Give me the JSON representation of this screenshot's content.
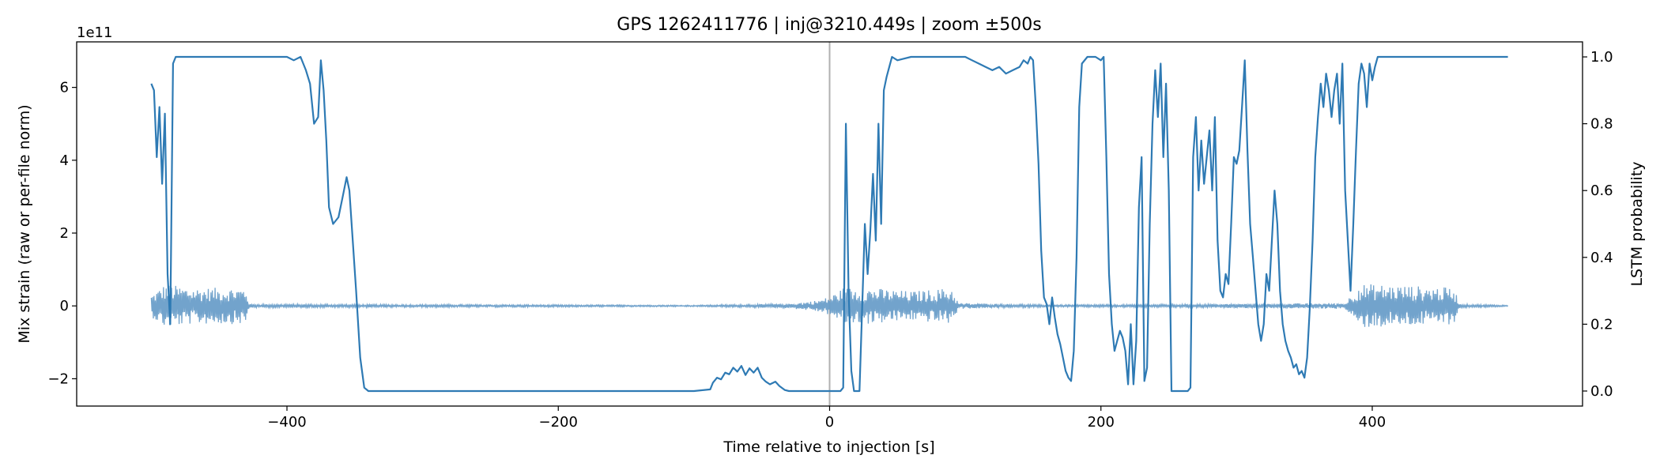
{
  "chart_data": {
    "type": "line",
    "title": "GPS 1262411776 | inj@3210.449s | zoom ±500s",
    "xlabel": "Time relative to injection [s]",
    "ylabel": "Mix strain (raw or per-file norm)",
    "y2label": "LSTM probability",
    "y_offset_label": "1e11",
    "xlim": [
      -555,
      555
    ],
    "ylim": [
      -2.75,
      7.25
    ],
    "y_scale": 100000000000.0,
    "y2lim": [
      -0.045,
      1.045
    ],
    "grid": false,
    "legend": "none",
    "colors": {
      "strain": "#6a9ec9",
      "probability": "#2e7ab4",
      "injection_line": "#b0b0b0"
    },
    "injection_marker_x": 0,
    "xticks": [
      -400,
      -200,
      0,
      200,
      400
    ],
    "xtick_labels": [
      "−400",
      "−200",
      "0",
      "200",
      "400"
    ],
    "yticks": [
      -2,
      0,
      2,
      4,
      6
    ],
    "ytick_labels": [
      "−2",
      "0",
      "2",
      "4",
      "6"
    ],
    "y2ticks": [
      0.0,
      0.2,
      0.4,
      0.6,
      0.8,
      1.0
    ],
    "y2tick_labels": [
      "0.0",
      "0.2",
      "0.4",
      "0.6",
      "0.8",
      "1.0"
    ],
    "series": [
      {
        "axis": "left",
        "noise_envelope": [
          [
            -500,
            0.3
          ],
          [
            -490,
            0.6
          ],
          [
            -470,
            0.5
          ],
          [
            -450,
            0.5
          ],
          [
            -430,
            0.5
          ],
          [
            -428,
            0.05
          ],
          [
            -100,
            0.02
          ],
          [
            -30,
            0.06
          ],
          [
            -10,
            0.15
          ],
          [
            0,
            0.25
          ],
          [
            10,
            0.5
          ],
          [
            30,
            0.5
          ],
          [
            60,
            0.4
          ],
          [
            90,
            0.5
          ],
          [
            95,
            0.08
          ],
          [
            160,
            0.03
          ],
          [
            240,
            0.04
          ],
          [
            380,
            0.08
          ],
          [
            390,
            0.6
          ],
          [
            400,
            0.6
          ],
          [
            460,
            0.5
          ],
          [
            465,
            0.05
          ],
          [
            500,
            0.02
          ]
        ]
      },
      {
        "axis": "right",
        "values": [
          [
            -500,
            0.92
          ],
          [
            -498,
            0.9
          ],
          [
            -496,
            0.7
          ],
          [
            -494,
            0.85
          ],
          [
            -492,
            0.62
          ],
          [
            -490,
            0.83
          ],
          [
            -488,
            0.35
          ],
          [
            -486,
            0.2
          ],
          [
            -484,
            0.98
          ],
          [
            -482,
            1.0
          ],
          [
            -470,
            1.0
          ],
          [
            -440,
            1.0
          ],
          [
            -400,
            1.0
          ],
          [
            -395,
            0.99
          ],
          [
            -390,
            1.0
          ],
          [
            -386,
            0.96
          ],
          [
            -383,
            0.92
          ],
          [
            -380,
            0.8
          ],
          [
            -377,
            0.82
          ],
          [
            -375,
            0.99
          ],
          [
            -373,
            0.9
          ],
          [
            -371,
            0.75
          ],
          [
            -369,
            0.55
          ],
          [
            -366,
            0.5
          ],
          [
            -362,
            0.52
          ],
          [
            -359,
            0.58
          ],
          [
            -356,
            0.64
          ],
          [
            -354,
            0.6
          ],
          [
            -352,
            0.48
          ],
          [
            -349,
            0.3
          ],
          [
            -346,
            0.1
          ],
          [
            -343,
            0.01
          ],
          [
            -340,
            0.0
          ],
          [
            -300,
            0.0
          ],
          [
            -200,
            0.0
          ],
          [
            -100,
            0.0
          ],
          [
            -88,
            0.005
          ],
          [
            -86,
            0.025
          ],
          [
            -83,
            0.04
          ],
          [
            -80,
            0.035
          ],
          [
            -77,
            0.055
          ],
          [
            -74,
            0.05
          ],
          [
            -71,
            0.07
          ],
          [
            -68,
            0.058
          ],
          [
            -65,
            0.075
          ],
          [
            -62,
            0.048
          ],
          [
            -59,
            0.068
          ],
          [
            -56,
            0.055
          ],
          [
            -53,
            0.07
          ],
          [
            -50,
            0.04
          ],
          [
            -47,
            0.028
          ],
          [
            -44,
            0.02
          ],
          [
            -40,
            0.028
          ],
          [
            -37,
            0.015
          ],
          [
            -33,
            0.003
          ],
          [
            -30,
            0.0
          ],
          [
            -5,
            0.0
          ],
          [
            0,
            0.0
          ],
          [
            8,
            0.0
          ],
          [
            10,
            0.01
          ],
          [
            12,
            0.8
          ],
          [
            14,
            0.3
          ],
          [
            16,
            0.06
          ],
          [
            18,
            0.0
          ],
          [
            22,
            0.0
          ],
          [
            24,
            0.25
          ],
          [
            26,
            0.5
          ],
          [
            28,
            0.35
          ],
          [
            30,
            0.48
          ],
          [
            32,
            0.65
          ],
          [
            34,
            0.45
          ],
          [
            36,
            0.8
          ],
          [
            38,
            0.5
          ],
          [
            40,
            0.9
          ],
          [
            42,
            0.94
          ],
          [
            44,
            0.97
          ],
          [
            46,
            1.0
          ],
          [
            50,
            0.99
          ],
          [
            60,
            1.0
          ],
          [
            80,
            1.0
          ],
          [
            100,
            1.0
          ],
          [
            105,
            0.99
          ],
          [
            110,
            0.98
          ],
          [
            115,
            0.97
          ],
          [
            120,
            0.96
          ],
          [
            125,
            0.97
          ],
          [
            130,
            0.95
          ],
          [
            135,
            0.96
          ],
          [
            140,
            0.97
          ],
          [
            143,
            0.99
          ],
          [
            146,
            0.98
          ],
          [
            148,
            1.0
          ],
          [
            150,
            0.99
          ],
          [
            152,
            0.85
          ],
          [
            154,
            0.68
          ],
          [
            156,
            0.42
          ],
          [
            158,
            0.28
          ],
          [
            160,
            0.26
          ],
          [
            162,
            0.2
          ],
          [
            164,
            0.28
          ],
          [
            166,
            0.22
          ],
          [
            168,
            0.17
          ],
          [
            170,
            0.14
          ],
          [
            172,
            0.1
          ],
          [
            174,
            0.06
          ],
          [
            176,
            0.04
          ],
          [
            178,
            0.03
          ],
          [
            180,
            0.12
          ],
          [
            182,
            0.4
          ],
          [
            184,
            0.85
          ],
          [
            186,
            0.98
          ],
          [
            190,
            1.0
          ],
          [
            196,
            1.0
          ],
          [
            200,
            0.99
          ],
          [
            202,
            1.0
          ],
          [
            204,
            0.7
          ],
          [
            206,
            0.35
          ],
          [
            208,
            0.2
          ],
          [
            210,
            0.12
          ],
          [
            212,
            0.15
          ],
          [
            214,
            0.18
          ],
          [
            216,
            0.16
          ],
          [
            218,
            0.12
          ],
          [
            220,
            0.02
          ],
          [
            222,
            0.2
          ],
          [
            224,
            0.02
          ],
          [
            226,
            0.15
          ],
          [
            228,
            0.55
          ],
          [
            230,
            0.7
          ],
          [
            232,
            0.03
          ],
          [
            234,
            0.07
          ],
          [
            236,
            0.5
          ],
          [
            238,
            0.8
          ],
          [
            240,
            0.96
          ],
          [
            242,
            0.82
          ],
          [
            244,
            0.98
          ],
          [
            246,
            0.7
          ],
          [
            248,
            0.92
          ],
          [
            250,
            0.6
          ],
          [
            252,
            0.0
          ],
          [
            255,
            0.0
          ],
          [
            260,
            0.0
          ],
          [
            264,
            0.0
          ],
          [
            266,
            0.01
          ],
          [
            268,
            0.7
          ],
          [
            270,
            0.82
          ],
          [
            272,
            0.6
          ],
          [
            274,
            0.75
          ],
          [
            276,
            0.62
          ],
          [
            278,
            0.7
          ],
          [
            280,
            0.78
          ],
          [
            282,
            0.6
          ],
          [
            284,
            0.82
          ],
          [
            286,
            0.45
          ],
          [
            288,
            0.3
          ],
          [
            290,
            0.28
          ],
          [
            292,
            0.35
          ],
          [
            294,
            0.32
          ],
          [
            296,
            0.5
          ],
          [
            298,
            0.7
          ],
          [
            300,
            0.68
          ],
          [
            302,
            0.72
          ],
          [
            304,
            0.85
          ],
          [
            306,
            0.99
          ],
          [
            308,
            0.72
          ],
          [
            310,
            0.5
          ],
          [
            312,
            0.4
          ],
          [
            314,
            0.3
          ],
          [
            316,
            0.2
          ],
          [
            318,
            0.15
          ],
          [
            320,
            0.2
          ],
          [
            322,
            0.35
          ],
          [
            324,
            0.3
          ],
          [
            326,
            0.45
          ],
          [
            328,
            0.6
          ],
          [
            330,
            0.5
          ],
          [
            332,
            0.3
          ],
          [
            334,
            0.2
          ],
          [
            336,
            0.15
          ],
          [
            338,
            0.12
          ],
          [
            340,
            0.1
          ],
          [
            342,
            0.07
          ],
          [
            344,
            0.08
          ],
          [
            346,
            0.05
          ],
          [
            348,
            0.06
          ],
          [
            350,
            0.04
          ],
          [
            352,
            0.1
          ],
          [
            354,
            0.25
          ],
          [
            356,
            0.45
          ],
          [
            358,
            0.7
          ],
          [
            360,
            0.82
          ],
          [
            362,
            0.92
          ],
          [
            364,
            0.85
          ],
          [
            366,
            0.95
          ],
          [
            368,
            0.9
          ],
          [
            370,
            0.82
          ],
          [
            372,
            0.9
          ],
          [
            374,
            0.95
          ],
          [
            376,
            0.8
          ],
          [
            378,
            0.98
          ],
          [
            380,
            0.6
          ],
          [
            382,
            0.45
          ],
          [
            384,
            0.3
          ],
          [
            386,
            0.5
          ],
          [
            388,
            0.72
          ],
          [
            390,
            0.92
          ],
          [
            392,
            0.98
          ],
          [
            394,
            0.95
          ],
          [
            396,
            0.85
          ],
          [
            398,
            0.98
          ],
          [
            400,
            0.93
          ],
          [
            402,
            0.97
          ],
          [
            404,
            1.0
          ],
          [
            410,
            1.0
          ],
          [
            450,
            1.0
          ],
          [
            500,
            1.0
          ]
        ]
      }
    ]
  }
}
